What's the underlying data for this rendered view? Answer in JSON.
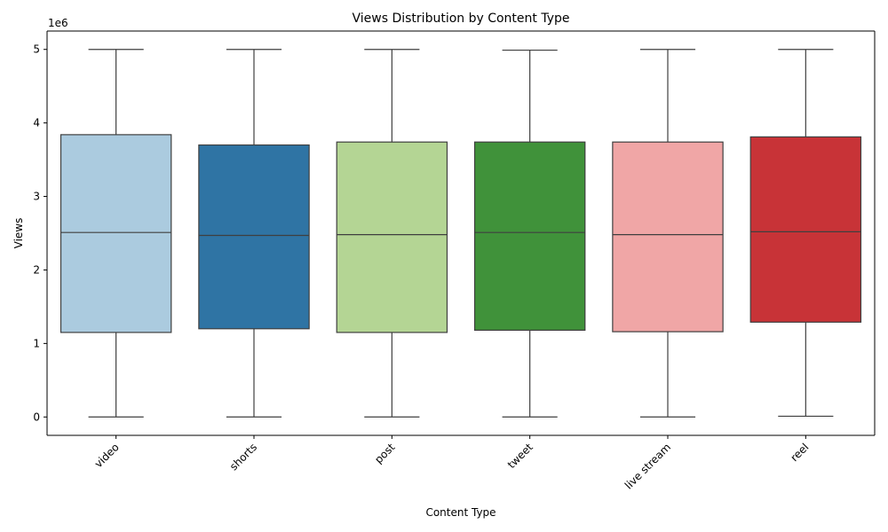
{
  "chart_data": {
    "type": "box",
    "title": "Views Distribution by Content Type",
    "xlabel": "Content Type",
    "ylabel": "Views",
    "y_offset_label": "1e6",
    "y_scale_factor": 1000000,
    "ylim": [
      -250000,
      5250000
    ],
    "yticks": [
      0,
      1000000,
      2000000,
      3000000,
      4000000,
      5000000
    ],
    "ytick_labels": [
      "0",
      "1",
      "2",
      "3",
      "4",
      "5"
    ],
    "grid": false,
    "categories": [
      "video",
      "shorts",
      "post",
      "tweet",
      "live stream",
      "reel"
    ],
    "series": [
      {
        "category": "video",
        "min": 0,
        "q1": 1150000,
        "median": 2510000,
        "q3": 3840000,
        "max": 5000000,
        "color": "#abcbdf"
      },
      {
        "category": "shorts",
        "min": 0,
        "q1": 1200000,
        "median": 2470000,
        "q3": 3700000,
        "max": 5000000,
        "color": "#2f74a4"
      },
      {
        "category": "post",
        "min": 0,
        "q1": 1150000,
        "median": 2480000,
        "q3": 3740000,
        "max": 5000000,
        "color": "#b4d594"
      },
      {
        "category": "tweet",
        "min": 0,
        "q1": 1180000,
        "median": 2510000,
        "q3": 3740000,
        "max": 4990000,
        "color": "#40923a"
      },
      {
        "category": "live stream",
        "min": 0,
        "q1": 1160000,
        "median": 2480000,
        "q3": 3740000,
        "max": 5000000,
        "color": "#f0a6a6"
      },
      {
        "category": "reel",
        "min": 10000,
        "q1": 1290000,
        "median": 2520000,
        "q3": 3810000,
        "max": 5000000,
        "color": "#c83337"
      }
    ]
  }
}
